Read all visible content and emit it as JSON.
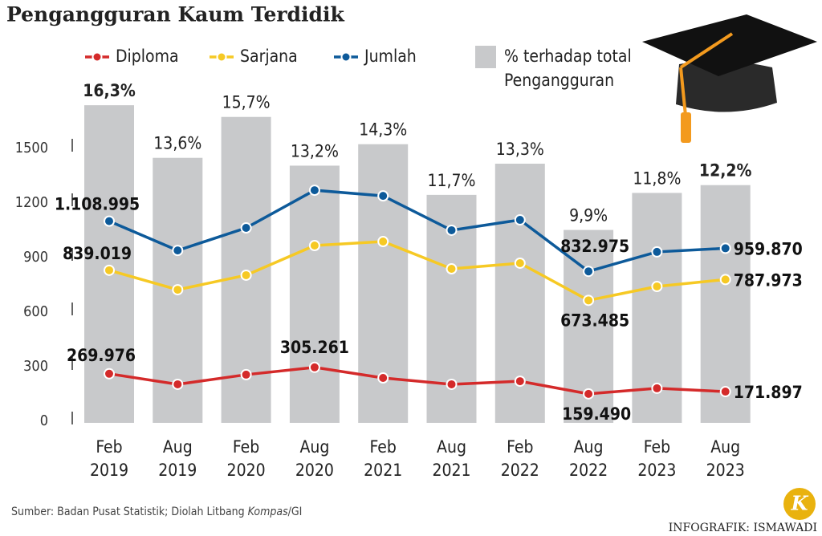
{
  "chart_data": {
    "type": "bar-line",
    "title": "Pengangguran Kaum Terdidik",
    "categories": [
      "Feb 2019",
      "Aug 2019",
      "Feb 2020",
      "Aug 2020",
      "Feb 2021",
      "Aug 2021",
      "Feb 2022",
      "Aug 2022",
      "Feb 2023",
      "Aug 2023"
    ],
    "ylim": [
      0,
      1500
    ],
    "yticks": [
      0,
      300,
      600,
      900,
      1200,
      1500
    ],
    "y2lim": [
      0,
      14
    ],
    "bars": {
      "name": "% terhadap total Pengangguran",
      "color": "#c8c9cb",
      "axis": "y2",
      "values": [
        16.3,
        13.6,
        15.7,
        13.2,
        14.3,
        11.7,
        13.3,
        9.9,
        11.8,
        12.2
      ],
      "value_labels": [
        "16,3%",
        "13,6%",
        "15,7%",
        "13,2%",
        "14,3%",
        "11,7%",
        "13,3%",
        "9,9%",
        "11,8%",
        "12,2%"
      ]
    },
    "series": [
      {
        "name": "Diploma",
        "color": "#d42a2a",
        "values": [
          269.976,
          212,
          265,
          305.261,
          247,
          212,
          229,
          159.49,
          190,
          171.897
        ],
        "value_labels": [
          "269.976",
          null,
          null,
          "305.261",
          null,
          null,
          null,
          "159.490",
          null,
          "171.897"
        ]
      },
      {
        "name": "Sarjana",
        "color": "#f6c924",
        "values": [
          839.019,
          732,
          812,
          975,
          997,
          847,
          878,
          673.485,
          750,
          787.973
        ],
        "value_labels": [
          "839.019",
          null,
          null,
          null,
          null,
          null,
          null,
          "673.485",
          null,
          "787.973"
        ]
      },
      {
        "name": "Jumlah",
        "color": "#0d5a9a",
        "values": [
          1108.995,
          948,
          1072,
          1279,
          1248,
          1059,
          1116,
          832.975,
          940,
          959.87
        ],
        "value_labels": [
          "1.108.995",
          null,
          null,
          null,
          null,
          null,
          null,
          "832.975",
          null,
          "959.870"
        ]
      }
    ],
    "source": [
      "Sumber: Badan Pusat Statistik; Diolah Litbang ",
      "Kompas",
      "/GI"
    ],
    "credit": "INFOGRAFIK: ISMAWADI",
    "logo": "K"
  }
}
